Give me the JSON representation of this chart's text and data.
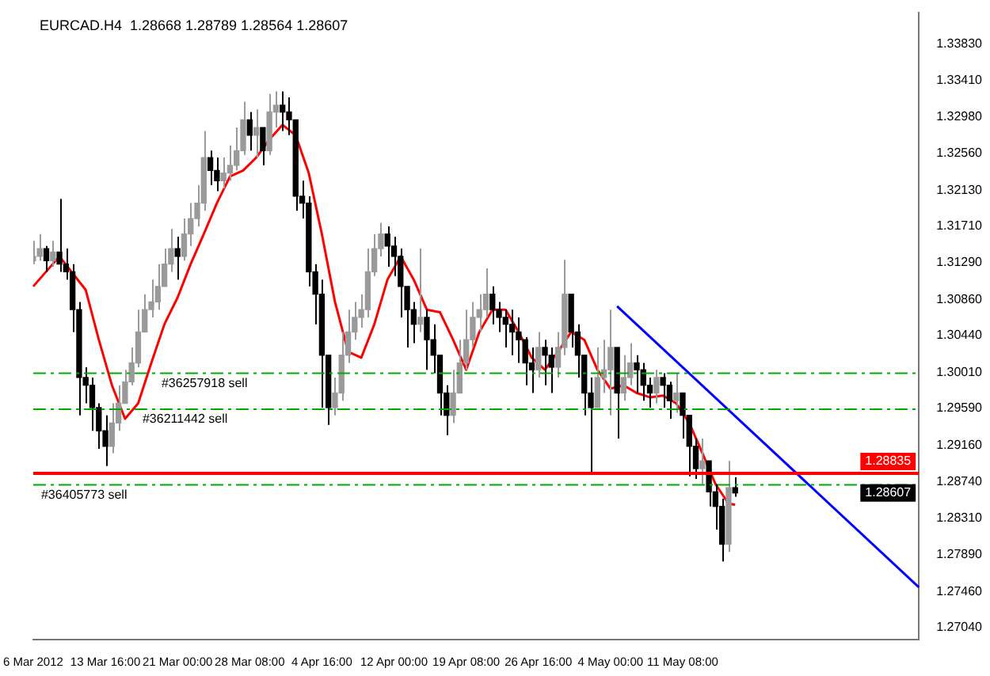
{
  "chart_data": {
    "type": "candlestick",
    "title": "EURCAD.H4  1.28668 1.28789 1.28564 1.28607",
    "categories": [
      "6 Mar 2012",
      null,
      null,
      null,
      null,
      null,
      null,
      null,
      null,
      null,
      null,
      "13 Mar 16:00",
      null,
      null,
      null,
      null,
      null,
      null,
      null,
      null,
      null,
      null,
      "21 Mar 00:00",
      null,
      null,
      null,
      null,
      null,
      null,
      null,
      null,
      null,
      null,
      "28 Mar 08:00",
      null,
      null,
      null,
      null,
      null,
      null,
      null,
      null,
      null,
      null,
      "4 Apr 16:00",
      null,
      null,
      null,
      null,
      null,
      null,
      null,
      null,
      null,
      null,
      "12 Apr 00:00",
      null,
      null,
      null,
      null,
      null,
      null,
      null,
      null,
      null,
      null,
      "19 Apr 08:00",
      null,
      null,
      null,
      null,
      null,
      null,
      null,
      null,
      null,
      null,
      "26 Apr 16:00",
      null,
      null,
      null,
      null,
      null,
      null,
      null,
      null,
      null,
      null,
      "4 May 00:00",
      null,
      null,
      null,
      null,
      null,
      null,
      null,
      null,
      null,
      null,
      "11 May 08:00",
      null,
      null,
      null,
      null,
      null,
      null,
      null,
      null,
      null,
      null,
      null,
      null,
      null,
      null,
      null,
      null,
      null,
      null,
      null,
      null,
      null,
      null,
      null,
      null,
      null,
      null,
      null,
      null,
      null,
      null,
      null,
      null,
      null,
      null,
      null,
      null
    ],
    "series": [
      {
        "colors": [
          "#9a9a9a",
          "#9a9a9a",
          "#000000",
          "#9a9a9a",
          "#000000",
          "#000000",
          "#000000",
          "#000000",
          "#000000",
          "#000000",
          "#000000",
          "#000000",
          "#9a9a9a",
          "#9a9a9a",
          "#9a9a9a",
          "#9a9a9a",
          "#9a9a9a",
          "#9a9a9a",
          "#9a9a9a",
          "#9a9a9a",
          "#9a9a9a",
          "#9a9a9a",
          "#000000",
          "#9a9a9a",
          "#9a9a9a",
          "#9a9a9a",
          "#9a9a9a",
          "#000000",
          "#000000",
          "#9a9a9a",
          "#9a9a9a",
          "#9a9a9a",
          "#9a9a9a",
          "#000000",
          "#9a9a9a",
          "#000000",
          "#9a9a9a",
          "#9a9a9a",
          "#000000",
          "#000000",
          "#000000",
          "#000000",
          "#000000",
          "#000000",
          "#000000",
          "#000000",
          "#9a9a9a",
          "#9a9a9a",
          "#9a9a9a",
          "#9a9a9a",
          "#9a9a9a",
          "#9a9a9a",
          "#9a9a9a",
          "#9a9a9a",
          "#000000",
          "#000000",
          "#000000",
          "#000000",
          "#000000",
          "#9a9a9a",
          "#000000",
          "#000000",
          "#000000",
          "#000000",
          "#9a9a9a",
          "#9a9a9a",
          "#9a9a9a",
          "#9a9a9a",
          "#9a9a9a",
          "#9a9a9a",
          "#000000",
          "#000000",
          "#000000",
          "#000000",
          "#000000",
          "#000000",
          "#000000",
          "#9a9a9a",
          "#000000",
          "#000000",
          "#9a9a9a",
          "#9a9a9a",
          "#000000",
          "#000000",
          "#000000",
          "#000000",
          "#9a9a9a",
          "#9a9a9a",
          "#9a9a9a",
          "#000000",
          "#9a9a9a",
          "#9a9a9a",
          "#000000",
          "#000000",
          "#000000",
          "#9a9a9a",
          "#000000",
          "#000000",
          "#9a9a9a",
          "#000000",
          "#000000",
          "#000000",
          "#9a9a9a",
          "#000000",
          "#000000",
          "#000000",
          "#9a9a9a",
          "#000000",
          null,
          null,
          null,
          null,
          null,
          null,
          null,
          null,
          null,
          null,
          null,
          null,
          null,
          null,
          null,
          null,
          null,
          null,
          null,
          null,
          null,
          null,
          null,
          null,
          null,
          null,
          null,
          null
        ],
        "ohlc": [
          [
            1.3131,
            1.3154,
            1.3127,
            1.3136
          ],
          [
            1.3136,
            1.3162,
            1.3131,
            1.3145
          ],
          [
            1.3145,
            1.3148,
            1.3118,
            1.3131
          ],
          [
            1.3131,
            1.3154,
            1.3124,
            1.3141
          ],
          [
            1.3141,
            1.3203,
            1.3118,
            1.3127
          ],
          [
            1.3127,
            1.3145,
            1.3109,
            1.3118
          ],
          [
            1.3118,
            1.3127,
            1.3048,
            1.3074
          ],
          [
            1.3074,
            1.3083,
            1.2951,
            1.2995
          ],
          [
            1.2995,
            1.3007,
            1.2965,
            1.2986
          ],
          [
            1.2986,
            1.2995,
            1.2933,
            1.296
          ],
          [
            1.296,
            1.2965,
            1.2912,
            1.2933
          ],
          [
            1.2933,
            1.2951,
            1.2892,
            1.2915
          ],
          [
            1.2915,
            1.2965,
            1.2907,
            1.2942
          ],
          [
            1.2942,
            1.2986,
            1.2933,
            1.2965
          ],
          [
            1.2965,
            1.3004,
            1.2965,
            1.299
          ],
          [
            1.299,
            1.303,
            1.2986,
            1.3012
          ],
          [
            1.3012,
            1.3074,
            1.3007,
            1.3048
          ],
          [
            1.3048,
            1.3092,
            1.3048,
            1.3074
          ],
          [
            1.3074,
            1.3109,
            1.3065,
            1.3083
          ],
          [
            1.3083,
            1.3127,
            1.3074,
            1.3101
          ],
          [
            1.3101,
            1.3145,
            1.3101,
            1.3127
          ],
          [
            1.3127,
            1.3168,
            1.3118,
            1.3145
          ],
          [
            1.3145,
            1.3159,
            1.3109,
            1.3136
          ],
          [
            1.3136,
            1.318,
            1.3131,
            1.3162
          ],
          [
            1.3162,
            1.3198,
            1.3148,
            1.318
          ],
          [
            1.318,
            1.3219,
            1.3171,
            1.3198
          ],
          [
            1.3198,
            1.3282,
            1.3189,
            1.3251
          ],
          [
            1.3251,
            1.3259,
            1.3219,
            1.3236
          ],
          [
            1.3236,
            1.3251,
            1.3212,
            1.3224
          ],
          [
            1.3224,
            1.3251,
            1.3215,
            1.3233
          ],
          [
            1.3233,
            1.3265,
            1.3224,
            1.3242
          ],
          [
            1.3242,
            1.3286,
            1.3236,
            1.3259
          ],
          [
            1.3259,
            1.3316,
            1.3254,
            1.3295
          ],
          [
            1.3295,
            1.3304,
            1.3259,
            1.3277
          ],
          [
            1.3277,
            1.3307,
            1.3251,
            1.3286
          ],
          [
            1.3286,
            1.3286,
            1.3242,
            1.3259
          ],
          [
            1.3259,
            1.3325,
            1.3254,
            1.3304
          ],
          [
            1.3304,
            1.3328,
            1.3286,
            1.3312
          ],
          [
            1.3312,
            1.3328,
            1.3282,
            1.3304
          ],
          [
            1.3304,
            1.3321,
            1.3277,
            1.3295
          ],
          [
            1.3295,
            1.3295,
            1.3189,
            1.3206
          ],
          [
            1.3206,
            1.3224,
            1.318,
            1.3198
          ],
          [
            1.3198,
            1.3206,
            1.3101,
            1.3118
          ],
          [
            1.3118,
            1.3127,
            1.3057,
            1.3092
          ],
          [
            1.3092,
            1.3109,
            1.296,
            1.3021
          ],
          [
            1.3021,
            1.3021,
            1.294,
            1.296
          ],
          [
            1.296,
            1.2995,
            1.2951,
            1.2977
          ],
          [
            1.2977,
            1.3048,
            1.2968,
            1.3021
          ],
          [
            1.3021,
            1.3074,
            1.3012,
            1.3048
          ],
          [
            1.3048,
            1.3083,
            1.3039,
            1.3065
          ],
          [
            1.3065,
            1.3092,
            1.3053,
            1.3074
          ],
          [
            1.3074,
            1.3145,
            1.3065,
            1.3118
          ],
          [
            1.3118,
            1.3162,
            1.3113,
            1.3145
          ],
          [
            1.3145,
            1.3175,
            1.3136,
            1.3162
          ],
          [
            1.3162,
            1.3171,
            1.3124,
            1.3148
          ],
          [
            1.3148,
            1.3159,
            1.3113,
            1.3136
          ],
          [
            1.3136,
            1.3145,
            1.3065,
            1.3101
          ],
          [
            1.3101,
            1.3101,
            1.303,
            1.3074
          ],
          [
            1.3074,
            1.3083,
            1.3035,
            1.3057
          ],
          [
            1.3057,
            1.3145,
            1.3048,
            1.3065
          ],
          [
            1.3065,
            1.3074,
            1.3004,
            1.3039
          ],
          [
            1.3039,
            1.3057,
            1.3,
            1.3021
          ],
          [
            1.3021,
            1.3021,
            1.2951,
            1.2977
          ],
          [
            1.2977,
            1.2986,
            1.2928,
            1.2951
          ],
          [
            1.2951,
            1.3004,
            1.2942,
            1.2977
          ],
          [
            1.2977,
            1.3039,
            1.2977,
            1.3012
          ],
          [
            1.3012,
            1.3074,
            1.3004,
            1.3039
          ],
          [
            1.3039,
            1.3083,
            1.303,
            1.3065
          ],
          [
            1.3065,
            1.3092,
            1.3048,
            1.3074
          ],
          [
            1.3074,
            1.3122,
            1.3065,
            1.3092
          ],
          [
            1.3092,
            1.3101,
            1.3057,
            1.3074
          ],
          [
            1.3074,
            1.3083,
            1.3048,
            1.3065
          ],
          [
            1.3065,
            1.3074,
            1.303,
            1.3057
          ],
          [
            1.3057,
            1.3074,
            1.3021,
            1.3048
          ],
          [
            1.3048,
            1.3065,
            1.3012,
            1.3039
          ],
          [
            1.3039,
            1.3042,
            1.2986,
            1.3012
          ],
          [
            1.3012,
            1.303,
            1.2977,
            1.3004
          ],
          [
            1.3004,
            1.3048,
            1.2995,
            1.303
          ],
          [
            1.303,
            1.3039,
            1.2986,
            1.3021
          ],
          [
            1.3021,
            1.303,
            1.2977,
            1.3007
          ],
          [
            1.3007,
            1.3048,
            1.2995,
            1.303
          ],
          [
            1.303,
            1.3132,
            1.3021,
            1.3092
          ],
          [
            1.3092,
            1.3092,
            1.303,
            1.3048
          ],
          [
            1.3048,
            1.3057,
            1.2995,
            1.3021
          ],
          [
            1.3021,
            1.3021,
            1.2951,
            1.2977
          ],
          [
            1.2977,
            1.2995,
            1.2884,
            1.296
          ],
          [
            1.296,
            1.303,
            1.296,
            1.2995
          ],
          [
            1.2995,
            1.3039,
            1.2977,
            1.3004
          ],
          [
            1.3004,
            1.3074,
            1.2951,
            1.303
          ],
          [
            1.303,
            1.303,
            1.2924,
            1.2977
          ],
          [
            1.2977,
            1.3021,
            1.2968,
            1.2995
          ],
          [
            1.2995,
            1.3035,
            1.2986,
            1.3012
          ],
          [
            1.3012,
            1.3021,
            1.2977,
            1.3004
          ],
          [
            1.3004,
            1.3012,
            1.2968,
            1.2986
          ],
          [
            1.2986,
            1.2995,
            1.296,
            1.2977
          ],
          [
            1.2977,
            1.3004,
            1.2965,
            1.2995
          ],
          [
            1.2995,
            1.3,
            1.296,
            1.2986
          ],
          [
            1.2986,
            1.299,
            1.2947,
            1.2968
          ],
          [
            1.2968,
            1.3,
            1.2954,
            1.2977
          ],
          [
            1.2977,
            1.2977,
            1.2924,
            1.2951
          ],
          [
            1.2951,
            1.2951,
            1.288,
            1.2915
          ],
          [
            1.2915,
            1.2924,
            1.2877,
            1.2889
          ],
          [
            1.2889,
            1.2924,
            1.2871,
            1.2898
          ],
          [
            1.2898,
            1.2898,
            1.2845,
            1.2862
          ],
          [
            1.2862,
            1.2871,
            1.2818,
            1.2845
          ],
          [
            1.2845,
            1.2854,
            1.2781,
            1.2801
          ],
          [
            1.2801,
            1.2898,
            1.2792,
            1.28668
          ],
          [
            1.28668,
            1.28789,
            1.28564,
            1.28607
          ],
          null,
          null,
          null,
          null,
          null,
          null,
          null,
          null,
          null,
          null,
          null,
          null,
          null,
          null,
          null,
          null,
          null,
          null,
          null,
          null,
          null,
          null,
          null,
          null,
          null,
          null,
          null,
          null
        ]
      },
      {
        "type": "line",
        "color": "#ff0000",
        "values": [
          1.3101,
          null,
          null,
          null,
          1.3136,
          null,
          null,
          null,
          1.3097,
          null,
          1.3039,
          null,
          1.2986,
          null,
          1.2947,
          null,
          1.2965,
          null,
          1.3012,
          null,
          1.3057,
          null,
          1.3088,
          null,
          1.3127,
          null,
          1.3162,
          null,
          1.3198,
          null,
          1.3229,
          null,
          1.3236,
          null,
          1.3251,
          null,
          1.3272,
          null,
          1.3289,
          null,
          1.3277,
          null,
          1.3233,
          null,
          1.3162,
          null,
          1.3083,
          null,
          1.3025,
          null,
          1.3018,
          null,
          1.3057,
          null,
          1.3109,
          null,
          1.3136,
          null,
          1.3109,
          null,
          1.3074,
          null,
          1.3071,
          null,
          1.3039,
          null,
          1.3004,
          null,
          1.3048,
          null,
          1.3074,
          null,
          1.3074,
          null,
          1.3048,
          null,
          1.3018,
          null,
          1.3004,
          null,
          1.3025,
          null,
          1.3048,
          null,
          1.3039,
          null,
          1.3004,
          null,
          1.2982,
          null,
          1.2986,
          null,
          1.2977,
          null,
          1.2972,
          null,
          1.2974,
          null,
          1.2965,
          null,
          1.2942,
          null,
          1.2907,
          null,
          1.2871,
          null,
          1.2848,
          1.2847,
          null,
          null,
          null,
          null,
          null,
          null,
          null,
          null,
          null,
          null,
          null,
          null,
          null,
          null,
          null,
          null,
          null,
          null,
          null,
          null,
          null,
          null,
          null,
          null,
          null,
          null,
          null,
          null
        ]
      },
      {
        "type": "line",
        "color": "#0000ff",
        "values": [
          null,
          null,
          null,
          null,
          null,
          null,
          null,
          null,
          null,
          null,
          null,
          null,
          null,
          null,
          null,
          null,
          null,
          null,
          null,
          null,
          null,
          null,
          null,
          null,
          null,
          null,
          null,
          null,
          null,
          null,
          null,
          null,
          null,
          null,
          null,
          null,
          null,
          null,
          null,
          null,
          null,
          null,
          null,
          null,
          null,
          null,
          null,
          null,
          null,
          null,
          null,
          null,
          null,
          null,
          null,
          null,
          null,
          null,
          null,
          null,
          null,
          null,
          null,
          null,
          null,
          null,
          null,
          null,
          null,
          null,
          null,
          null,
          null,
          null,
          null,
          null,
          null,
          null,
          null,
          null,
          null,
          null,
          null,
          null,
          null,
          null,
          null,
          null,
          null,
          1.3078,
          null,
          null,
          null,
          null,
          null,
          null,
          null,
          null,
          null,
          null,
          null,
          null,
          null,
          null,
          null,
          null,
          null,
          null,
          null,
          null,
          null,
          null,
          null,
          null,
          null,
          null,
          null,
          null,
          null,
          null,
          null,
          null,
          null,
          null,
          null,
          null,
          null,
          null,
          null,
          null,
          null,
          null,
          null,
          null,
          null,
          1.2751
        ]
      }
    ],
    "ylim": [
      1.269,
      1.342
    ],
    "yticks": [
      {
        "value": 1.2704,
        "label": "1.27040"
      },
      {
        "value": 1.2746,
        "label": "1.27460"
      },
      {
        "value": 1.2789,
        "label": "1.27890"
      },
      {
        "value": 1.2831,
        "label": "1.28310"
      },
      {
        "value": 1.2874,
        "label": "1.28740"
      },
      {
        "value": 1.2916,
        "label": "1.29160"
      },
      {
        "value": 1.2959,
        "label": "1.29590"
      },
      {
        "value": 1.3001,
        "label": "1.30010"
      },
      {
        "value": 1.3044,
        "label": "1.30440"
      },
      {
        "value": 1.3086,
        "label": "1.30860"
      },
      {
        "value": 1.3129,
        "label": "1.31290"
      },
      {
        "value": 1.3171,
        "label": "1.31710"
      },
      {
        "value": 1.3213,
        "label": "1.32130"
      },
      {
        "value": 1.3256,
        "label": "1.32560"
      },
      {
        "value": 1.3298,
        "label": "1.32980"
      },
      {
        "value": 1.3341,
        "label": "1.33410"
      },
      {
        "value": 1.3383,
        "label": "1.33830"
      }
    ],
    "ref_lines": [
      {
        "axis": "y",
        "value": 1.28835,
        "label": "1.28835",
        "color": "#ff0000",
        "line_style": "solid"
      },
      {
        "axis": "y",
        "value": 1.3,
        "label": "#36257918 sell",
        "color": "#00aa00",
        "line_style": "dashed"
      },
      {
        "axis": "y",
        "value": 1.2958,
        "label": "#36211442 sell",
        "color": "#00aa00",
        "line_style": "dashed"
      },
      {
        "axis": "y",
        "value": 1.287,
        "label": "#36405773 sell",
        "color": "#00aa00",
        "line_style": "dashed"
      }
    ],
    "annotations": [
      {
        "text": "1.28607",
        "y": 1.28607
      }
    ],
    "legend": false,
    "grid": false
  }
}
